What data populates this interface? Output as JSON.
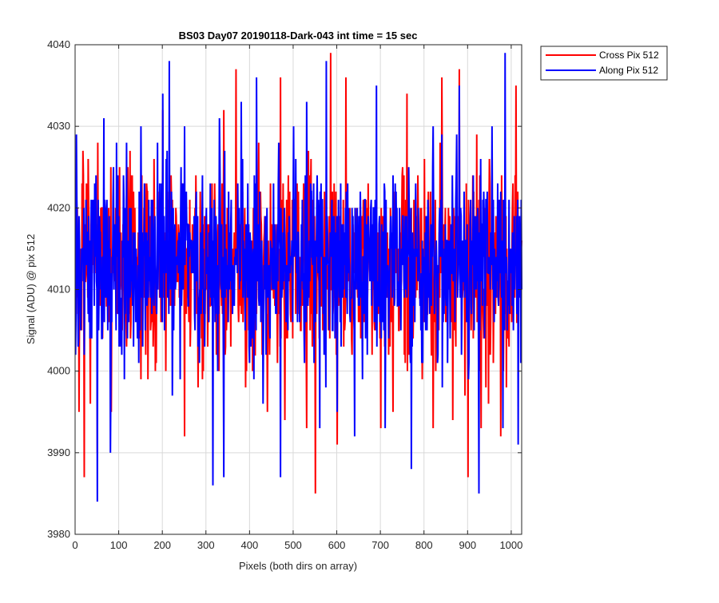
{
  "chart_data": {
    "type": "line",
    "title": "BS03 Day07 20190118-Dark-043 int time = 15 sec",
    "xlabel": "Pixels (both dirs on array)",
    "ylabel": "Signal (ADU) @ pix 512",
    "xlim": [
      0,
      1024
    ],
    "ylim": [
      3980,
      4040
    ],
    "xticks": [
      0,
      100,
      200,
      300,
      400,
      500,
      600,
      700,
      800,
      900,
      1000
    ],
    "yticks": [
      3980,
      3990,
      4000,
      4010,
      4020,
      4030,
      4040
    ],
    "grid": true,
    "legend_position": "outside-top-right",
    "series_generation": {
      "points": 1024,
      "base": 4013,
      "amplitude": 6
    },
    "series": [
      {
        "name": "Cross Pix 512",
        "color": "#ff0000",
        "seed": 7,
        "anchors": [
          [
            4,
            4020
          ],
          [
            8,
            3995
          ],
          [
            20,
            3987
          ],
          [
            50,
            3990
          ],
          [
            82,
            3995
          ],
          [
            125,
            4027
          ],
          [
            150,
            3999
          ],
          [
            200,
            4032
          ],
          [
            250,
            3992
          ],
          [
            300,
            4019
          ],
          [
            340,
            4032
          ],
          [
            368,
            4037
          ],
          [
            390,
            3998
          ],
          [
            420,
            4028
          ],
          [
            440,
            3995
          ],
          [
            470,
            4036
          ],
          [
            480,
            3994
          ],
          [
            530,
            3993
          ],
          [
            550,
            3985
          ],
          [
            585,
            4039
          ],
          [
            600,
            3991
          ],
          [
            620,
            4036
          ],
          [
            700,
            3993
          ],
          [
            760,
            4034
          ],
          [
            800,
            4026
          ],
          [
            820,
            3993
          ],
          [
            840,
            4036
          ],
          [
            865,
            3994
          ],
          [
            880,
            4037
          ],
          [
            900,
            3987
          ],
          [
            930,
            3993
          ],
          [
            975,
            3992
          ],
          [
            1010,
            4035
          ],
          [
            1020,
            4013
          ]
        ]
      },
      {
        "name": "Along Pix 512",
        "color": "#0000ff",
        "seed": 29,
        "anchors": [
          [
            2,
            4029
          ],
          [
            50,
            3984
          ],
          [
            65,
            4031
          ],
          [
            80,
            3990
          ],
          [
            150,
            4030
          ],
          [
            200,
            4034
          ],
          [
            215,
            4038
          ],
          [
            250,
            4030
          ],
          [
            315,
            3986
          ],
          [
            330,
            4031
          ],
          [
            340,
            3987
          ],
          [
            380,
            4033
          ],
          [
            415,
            4036
          ],
          [
            430,
            3996
          ],
          [
            470,
            3987
          ],
          [
            500,
            4030
          ],
          [
            530,
            4033
          ],
          [
            560,
            3993
          ],
          [
            575,
            4038
          ],
          [
            600,
            3995
          ],
          [
            640,
            3992
          ],
          [
            690,
            4035
          ],
          [
            710,
            3993
          ],
          [
            770,
            3988
          ],
          [
            820,
            4030
          ],
          [
            840,
            4029
          ],
          [
            880,
            4035
          ],
          [
            925,
            3985
          ],
          [
            955,
            4030
          ],
          [
            980,
            3993
          ],
          [
            985,
            4039
          ],
          [
            1015,
            3991
          ],
          [
            1024,
            4008
          ]
        ]
      }
    ]
  }
}
